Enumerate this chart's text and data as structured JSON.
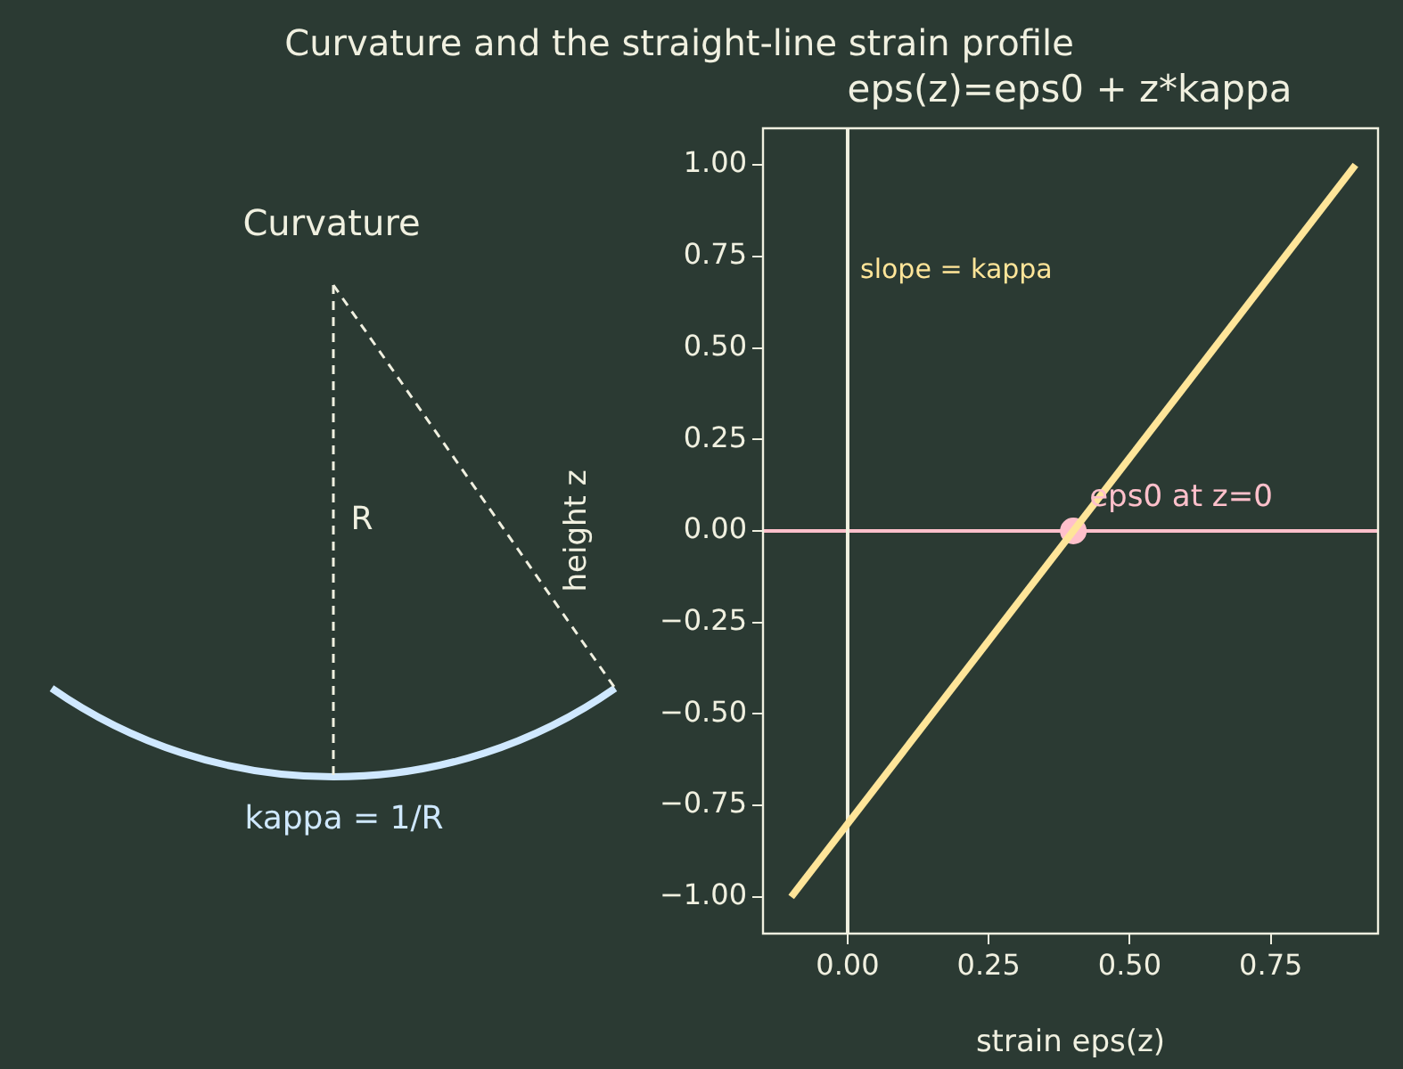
{
  "chart_data": [
    {
      "type": "other",
      "title": "Curvature and the straight-line strain profile",
      "subtitle": "Curvature",
      "annotations": [
        "R",
        "kappa = 1/R"
      ]
    },
    {
      "type": "line",
      "title": "eps(z)=eps0 + z*kappa",
      "xlabel": "strain eps(z)",
      "ylabel": "height z",
      "x": [
        -0.1,
        0.9
      ],
      "series": [
        {
          "color": "#ffe599",
          "values": [
            -1,
            1
          ]
        },
        {
          "type": "scatter",
          "x": [
            0.4
          ],
          "values": [
            0
          ],
          "color": "#ffc0cb"
        }
      ],
      "xlim": [
        -0.15,
        0.94
      ],
      "ylim": [
        -1.1,
        1.1
      ],
      "xticks": [
        {
          "value": 0,
          "label": "0.00"
        },
        {
          "value": 0.25,
          "label": "0.25"
        },
        {
          "value": 0.5,
          "label": "0.50"
        },
        {
          "value": 0.75,
          "label": "0.75"
        }
      ],
      "yticks": [
        {
          "value": -1,
          "label": "−1.00"
        },
        {
          "value": -0.75,
          "label": "−0.75"
        },
        {
          "value": -0.5,
          "label": "−0.50"
        },
        {
          "value": -0.25,
          "label": "−0.25"
        },
        {
          "value": 0,
          "label": "0.00"
        },
        {
          "value": 0.25,
          "label": "0.25"
        },
        {
          "value": 0.5,
          "label": "0.50"
        },
        {
          "value": 0.75,
          "label": "0.75"
        },
        {
          "value": 1,
          "label": "1.00"
        }
      ],
      "ref_lines": [
        {
          "axis": "y",
          "value": 0,
          "color": "#ffc0cb"
        },
        {
          "axis": "x",
          "value": 0,
          "color": "#f0f0e0"
        }
      ],
      "annotations": [
        {
          "text": "eps0 at z=0",
          "x": 0.4,
          "y": 0
        },
        "slope = kappa"
      ],
      "grid": false,
      "legend": false
    }
  ]
}
